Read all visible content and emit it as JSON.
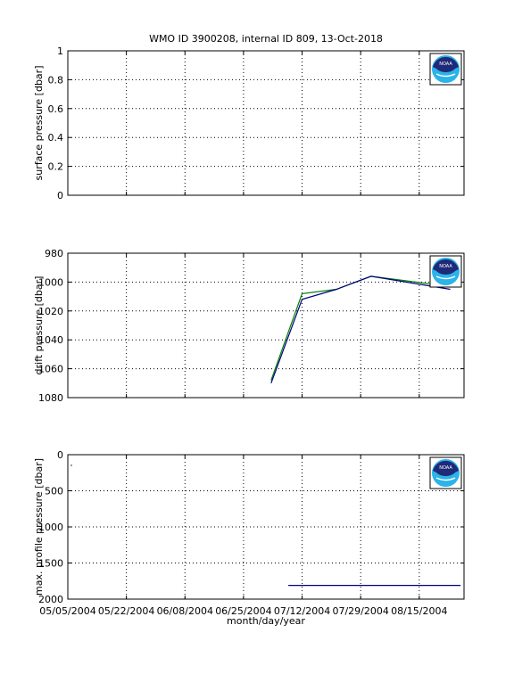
{
  "figure_title": "WMO ID 3900208, internal ID 809, 13-Oct-2018",
  "shared_x": {
    "label": "month/day/year",
    "tick_labels": [
      "05/05/2004",
      "05/22/2004",
      "06/08/2004",
      "06/25/2004",
      "07/12/2004",
      "07/29/2004",
      "08/15/2004"
    ]
  },
  "logo": {
    "text": "NOAA",
    "icon": "noaa-logo-icon",
    "colors": {
      "dark": "#1f2a78",
      "light": "#2bb3ea"
    }
  },
  "chart_data": [
    {
      "type": "line",
      "title": "WMO ID 3900208, internal ID 809, 13-Oct-2018",
      "xlabel": "",
      "ylabel": "surface pressure [dbar]",
      "x_ticks": [
        "05/05/2004",
        "05/22/2004",
        "06/08/2004",
        "06/25/2004",
        "07/12/2004",
        "07/29/2004",
        "08/15/2004"
      ],
      "xlim": [
        "05/05/2004",
        "08/28/2004"
      ],
      "ylim": [
        0,
        1
      ],
      "y_ticks": [
        "0",
        "0.2",
        "0.4",
        "0.6",
        "0.8",
        "1"
      ],
      "y_reversed": false,
      "grid": true,
      "series": []
    },
    {
      "type": "line",
      "xlabel": "",
      "ylabel": "drift pressure [dbar]",
      "x_ticks": [
        "05/05/2004",
        "05/22/2004",
        "06/08/2004",
        "06/25/2004",
        "07/12/2004",
        "07/29/2004",
        "08/15/2004"
      ],
      "xlim": [
        "05/05/2004",
        "08/28/2004"
      ],
      "ylim": [
        980,
        1080
      ],
      "y_ticks": [
        "980",
        "1000",
        "1020",
        "1040",
        "1060",
        "1080"
      ],
      "y_reversed": true,
      "grid": true,
      "series": [
        {
          "color": "#008000",
          "points": [
            [
              "07/03/2004",
              1068
            ],
            [
              "07/12/2004",
              1008
            ],
            [
              "07/22/2004",
              1005
            ],
            [
              "08/01/2004",
              996
            ],
            [
              "08/24/2004",
              1003
            ]
          ]
        },
        {
          "color": "#000080",
          "points": [
            [
              "07/03/2004",
              1070
            ],
            [
              "07/12/2004",
              1012
            ],
            [
              "07/22/2004",
              1005
            ],
            [
              "08/01/2004",
              996
            ],
            [
              "08/24/2004",
              1005
            ]
          ]
        }
      ]
    },
    {
      "type": "line",
      "xlabel": "month/day/year",
      "ylabel": "max. profile pressure [dbar]",
      "x_ticks": [
        "05/05/2004",
        "05/22/2004",
        "06/08/2004",
        "06/25/2004",
        "07/12/2004",
        "07/29/2004",
        "08/15/2004"
      ],
      "xlim": [
        "05/05/2004",
        "08/28/2004"
      ],
      "ylim": [
        0,
        2000
      ],
      "y_ticks": [
        "0",
        "500",
        "1000",
        "1500",
        "2000"
      ],
      "y_reversed": true,
      "grid": true,
      "series": [
        {
          "color": "#000080",
          "points": [
            [
              "07/08/2004",
              1810
            ],
            [
              "08/27/2004",
              1810
            ]
          ]
        }
      ]
    }
  ]
}
